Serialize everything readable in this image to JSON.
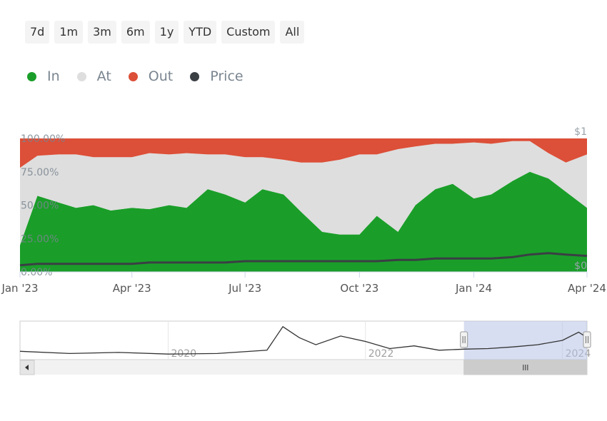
{
  "range_buttons": [
    "7d",
    "1m",
    "3m",
    "6m",
    "1y",
    "YTD",
    "Custom",
    "All"
  ],
  "legend": [
    {
      "label": "In",
      "color": "#1a9e29"
    },
    {
      "label": "At",
      "color": "#dedede"
    },
    {
      "label": "Out",
      "color": "#dc4f38"
    },
    {
      "label": "Price",
      "color": "#3a3f44"
    }
  ],
  "chart_data": {
    "type": "area",
    "stacking": "percent",
    "x_labels": [
      "Jan '23",
      "Apr '23",
      "Jul '23",
      "Oct '23",
      "Jan '24",
      "Apr '24"
    ],
    "y_labels": [
      "100.00%",
      "75.00%",
      "50.00%",
      "25.00%",
      "0.00%"
    ],
    "y2_labels": [
      "$1",
      "$0"
    ],
    "ylim": [
      0,
      100
    ],
    "y2lim": [
      0,
      1
    ],
    "x": [
      "2023-01-01",
      "2023-01-15",
      "2023-02-01",
      "2023-02-15",
      "2023-03-01",
      "2023-03-15",
      "2023-04-01",
      "2023-04-15",
      "2023-05-01",
      "2023-05-15",
      "2023-06-01",
      "2023-06-15",
      "2023-07-01",
      "2023-07-15",
      "2023-08-01",
      "2023-08-15",
      "2023-09-01",
      "2023-09-15",
      "2023-10-01",
      "2023-10-15",
      "2023-11-01",
      "2023-11-15",
      "2023-12-01",
      "2023-12-15",
      "2024-01-01",
      "2024-01-15",
      "2024-02-01",
      "2024-02-15",
      "2024-03-01",
      "2024-03-15",
      "2024-04-01"
    ],
    "series": [
      {
        "name": "In",
        "values": [
          20,
          57,
          52,
          48,
          50,
          46,
          48,
          47,
          50,
          48,
          62,
          58,
          52,
          62,
          58,
          45,
          30,
          28,
          28,
          42,
          30,
          50,
          62,
          66,
          55,
          58,
          68,
          75,
          70,
          60,
          48
        ]
      },
      {
        "name": "At",
        "values": [
          58,
          30,
          36,
          40,
          36,
          40,
          38,
          42,
          38,
          41,
          26,
          30,
          34,
          24,
          26,
          37,
          52,
          56,
          60,
          46,
          62,
          44,
          34,
          30,
          42,
          38,
          30,
          23,
          19,
          22,
          40
        ]
      },
      {
        "name": "Out",
        "values": [
          22,
          13,
          12,
          12,
          14,
          14,
          14,
          11,
          12,
          11,
          12,
          12,
          14,
          14,
          16,
          18,
          18,
          16,
          12,
          12,
          8,
          6,
          4,
          4,
          3,
          4,
          2,
          2,
          11,
          18,
          12
        ]
      },
      {
        "name": "Price",
        "values": [
          0.05,
          0.06,
          0.06,
          0.06,
          0.06,
          0.06,
          0.06,
          0.07,
          0.07,
          0.07,
          0.07,
          0.07,
          0.08,
          0.08,
          0.08,
          0.08,
          0.08,
          0.08,
          0.08,
          0.08,
          0.09,
          0.09,
          0.1,
          0.1,
          0.1,
          0.1,
          0.11,
          0.13,
          0.14,
          0.13,
          0.12
        ]
      }
    ],
    "navigator": {
      "x_labels": [
        "2020",
        "2022",
        "2024"
      ],
      "x": [
        "2018-07",
        "2019-01",
        "2019-07",
        "2020-01",
        "2020-07",
        "2021-01",
        "2021-03",
        "2021-05",
        "2021-07",
        "2021-10",
        "2022-01",
        "2022-04",
        "2022-07",
        "2022-10",
        "2023-01",
        "2023-04",
        "2023-07",
        "2023-10",
        "2024-01",
        "2024-03",
        "2024-04"
      ],
      "values": [
        0.1,
        0.06,
        0.08,
        0.05,
        0.06,
        0.12,
        0.55,
        0.35,
        0.22,
        0.38,
        0.28,
        0.15,
        0.2,
        0.12,
        0.14,
        0.15,
        0.18,
        0.22,
        0.3,
        0.45,
        0.35
      ],
      "selected_range": [
        "2023-01",
        "2024-04"
      ]
    }
  }
}
